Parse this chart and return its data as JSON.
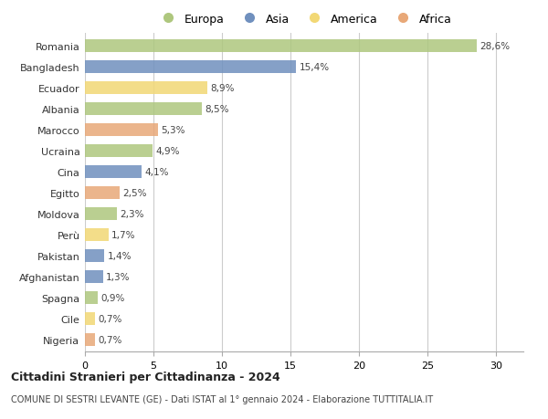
{
  "countries": [
    "Romania",
    "Bangladesh",
    "Ecuador",
    "Albania",
    "Marocco",
    "Ucraina",
    "Cina",
    "Egitto",
    "Moldova",
    "Perù",
    "Pakistan",
    "Afghanistan",
    "Spagna",
    "Cile",
    "Nigeria"
  ],
  "values": [
    28.6,
    15.4,
    8.9,
    8.5,
    5.3,
    4.9,
    4.1,
    2.5,
    2.3,
    1.7,
    1.4,
    1.3,
    0.9,
    0.7,
    0.7
  ],
  "labels": [
    "28,6%",
    "15,4%",
    "8,9%",
    "8,5%",
    "5,3%",
    "4,9%",
    "4,1%",
    "2,5%",
    "2,3%",
    "1,7%",
    "1,4%",
    "1,3%",
    "0,9%",
    "0,7%",
    "0,7%"
  ],
  "continents": [
    "Europa",
    "Asia",
    "America",
    "Europa",
    "Africa",
    "Europa",
    "Asia",
    "Africa",
    "Europa",
    "America",
    "Asia",
    "Asia",
    "Europa",
    "America",
    "Africa"
  ],
  "colors": {
    "Europa": "#aec77e",
    "Asia": "#7090be",
    "America": "#f2d875",
    "Africa": "#e8a878"
  },
  "legend_order": [
    "Europa",
    "Asia",
    "America",
    "Africa"
  ],
  "xlim": [
    0,
    32
  ],
  "xticks": [
    0,
    5,
    10,
    15,
    20,
    25,
    30
  ],
  "title": "Cittadini Stranieri per Cittadinanza - 2024",
  "subtitle": "COMUNE DI SESTRI LEVANTE (GE) - Dati ISTAT al 1° gennaio 2024 - Elaborazione TUTTITALIA.IT",
  "background_color": "#ffffff",
  "grid_color": "#cccccc",
  "bar_height": 0.6
}
